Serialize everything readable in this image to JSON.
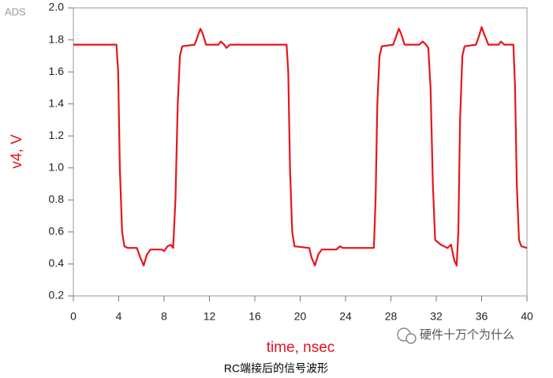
{
  "chart_data": {
    "type": "line",
    "brand": "ADS",
    "ylabel": "v4, V",
    "xlabel": "time, nsec",
    "caption": "RC端接后的信号波形",
    "watermark": "硬件十万个为什么",
    "color": "#e8141c",
    "x": [
      0,
      3.8,
      3.95,
      4.1,
      4.3,
      4.5,
      4.8,
      5.6,
      5.9,
      6.2,
      6.5,
      6.8,
      7.8,
      8.0,
      8.3,
      8.6,
      8.8,
      9.0,
      9.2,
      9.4,
      9.6,
      10.7,
      11.0,
      11.2,
      11.4,
      11.7,
      12.8,
      13.0,
      13.3,
      13.5,
      13.8,
      18.8,
      18.95,
      19.1,
      19.3,
      19.5,
      20.8,
      21.0,
      21.3,
      21.6,
      21.9,
      23.2,
      23.5,
      23.8,
      26.5,
      26.65,
      26.8,
      27.0,
      27.2,
      28.2,
      28.5,
      28.7,
      28.9,
      29.2,
      30.5,
      30.8,
      31.1,
      31.3,
      31.5,
      31.7,
      31.9,
      32.4,
      33.0,
      33.3,
      33.6,
      33.8,
      33.95,
      34.1,
      34.3,
      34.5,
      35.5,
      35.8,
      36.0,
      36.2,
      36.6,
      37.5,
      37.7,
      38.0,
      38.8,
      38.95,
      39.1,
      39.3,
      39.5,
      40
    ],
    "values": [
      1.77,
      1.77,
      1.6,
      1.0,
      0.6,
      0.51,
      0.5,
      0.5,
      0.44,
      0.39,
      0.46,
      0.49,
      0.49,
      0.48,
      0.51,
      0.52,
      0.5,
      0.8,
      1.4,
      1.7,
      1.76,
      1.77,
      1.83,
      1.87,
      1.84,
      1.77,
      1.77,
      1.79,
      1.77,
      1.75,
      1.77,
      1.77,
      1.6,
      1.0,
      0.6,
      0.51,
      0.5,
      0.44,
      0.39,
      0.46,
      0.49,
      0.49,
      0.51,
      0.5,
      0.5,
      0.8,
      1.4,
      1.7,
      1.76,
      1.77,
      1.83,
      1.87,
      1.84,
      1.77,
      1.77,
      1.79,
      1.77,
      1.75,
      1.5,
      0.9,
      0.55,
      0.52,
      0.5,
      0.52,
      0.42,
      0.39,
      0.6,
      1.3,
      1.7,
      1.76,
      1.77,
      1.83,
      1.88,
      1.84,
      1.77,
      1.77,
      1.79,
      1.77,
      1.77,
      1.5,
      0.9,
      0.55,
      0.51,
      0.5
    ],
    "xlim": [
      0,
      40
    ],
    "xticks": [
      0,
      4,
      8,
      12,
      16,
      20,
      24,
      28,
      32,
      36,
      40
    ],
    "ylim": [
      0.2,
      2.0
    ],
    "yticks": [
      {
        "value": 2.0,
        "label": "2.0"
      },
      1.8,
      1.6,
      1.4,
      1.2,
      {
        "value": 1.0,
        "label": "1.0"
      },
      0.8,
      0.6,
      0.4,
      0.2
    ]
  }
}
